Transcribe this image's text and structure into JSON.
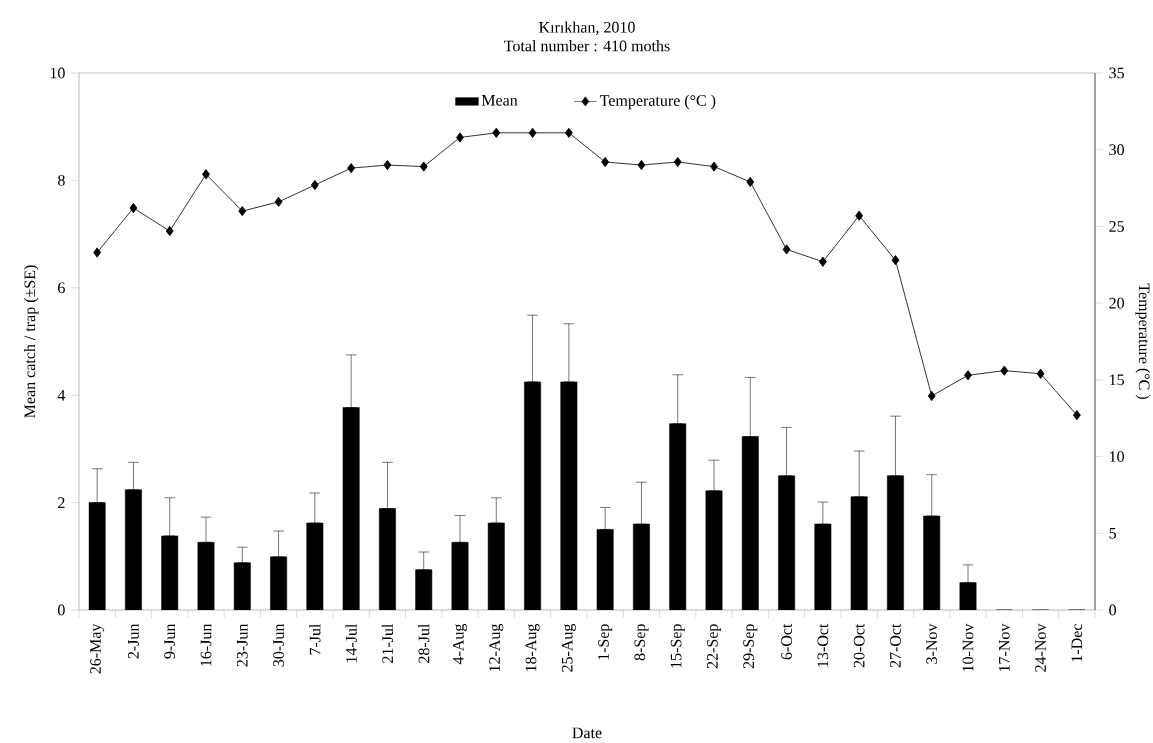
{
  "chart_data": {
    "type": "bar",
    "title": "Kırıkhan, 2010",
    "subtitle": "Total number : 410 moths",
    "xlabel": "Date",
    "ylabel": "Mean catch / trap (±SE)",
    "y2label": "Temperature (°C )",
    "categories": [
      "26-May",
      "2-Jun",
      "9-Jun",
      "16-Jun",
      "23-Jun",
      "30-Jun",
      "7-Jul",
      "14-Jul",
      "21-Jul",
      "28-Jul",
      "4-Aug",
      "12-Aug",
      "18-Aug",
      "25-Aug",
      "1-Sep",
      "8-Sep",
      "15-Sep",
      "22-Sep",
      "29-Sep",
      "6-Oct",
      "13-Oct",
      "20-Oct",
      "27-Oct",
      "3-Nov",
      "10-Nov",
      "17-Nov",
      "24-Nov",
      "1-Dec"
    ],
    "series": [
      {
        "name": "Mean",
        "color": "#000000",
        "values": [
          2.0,
          2.24,
          1.38,
          1.26,
          0.88,
          0.99,
          1.62,
          3.77,
          1.89,
          0.75,
          1.26,
          1.62,
          4.25,
          4.25,
          1.5,
          1.6,
          3.47,
          2.22,
          3.23,
          2.5,
          1.6,
          2.11,
          2.5,
          1.75,
          0.51,
          0,
          0,
          0
        ],
        "errors": [
          [
            2.0,
            2.63
          ],
          [
            2.24,
            2.75
          ],
          [
            1.38,
            2.09
          ],
          [
            1.26,
            1.73
          ],
          [
            0.88,
            1.17
          ],
          [
            0.99,
            1.47
          ],
          [
            1.62,
            2.18
          ],
          [
            3.77,
            4.75
          ],
          [
            1.89,
            2.75
          ],
          [
            0.75,
            1.08
          ],
          [
            1.26,
            1.76
          ],
          [
            1.62,
            2.09
          ],
          [
            4.25,
            5.49
          ],
          [
            4.25,
            5.33
          ],
          [
            1.5,
            1.91
          ],
          [
            1.6,
            2.38
          ],
          [
            3.47,
            4.38
          ],
          [
            2.22,
            2.79
          ],
          [
            3.23,
            4.33
          ],
          [
            2.5,
            3.4
          ],
          [
            1.6,
            2.01
          ],
          [
            2.11,
            2.96
          ],
          [
            2.5,
            3.61
          ],
          [
            1.75,
            2.52
          ],
          [
            0.51,
            0.84
          ],
          null,
          null,
          null
        ]
      },
      {
        "name": "Temperature (°C )",
        "type": "line",
        "axis": "y2",
        "color": "#000000",
        "marker": "diamond",
        "line_style": "solid",
        "values": [
          23.3,
          26.2,
          24.7,
          28.4,
          26.0,
          26.6,
          27.7,
          28.8,
          29.0,
          28.9,
          30.8,
          31.1,
          31.1,
          31.1,
          29.2,
          29.0,
          29.2,
          28.9,
          27.9,
          23.5,
          22.7,
          25.7,
          22.8,
          13.95,
          15.3,
          15.6,
          15.4,
          12.7
        ]
      }
    ],
    "ylim": [
      0,
      10
    ],
    "yticks": [
      0,
      2,
      4,
      6,
      8,
      10
    ],
    "y2lim": [
      0,
      35
    ],
    "y2ticks": [
      0,
      5,
      10,
      15,
      20,
      25,
      30,
      35
    ],
    "grid": false,
    "legend": "top"
  }
}
